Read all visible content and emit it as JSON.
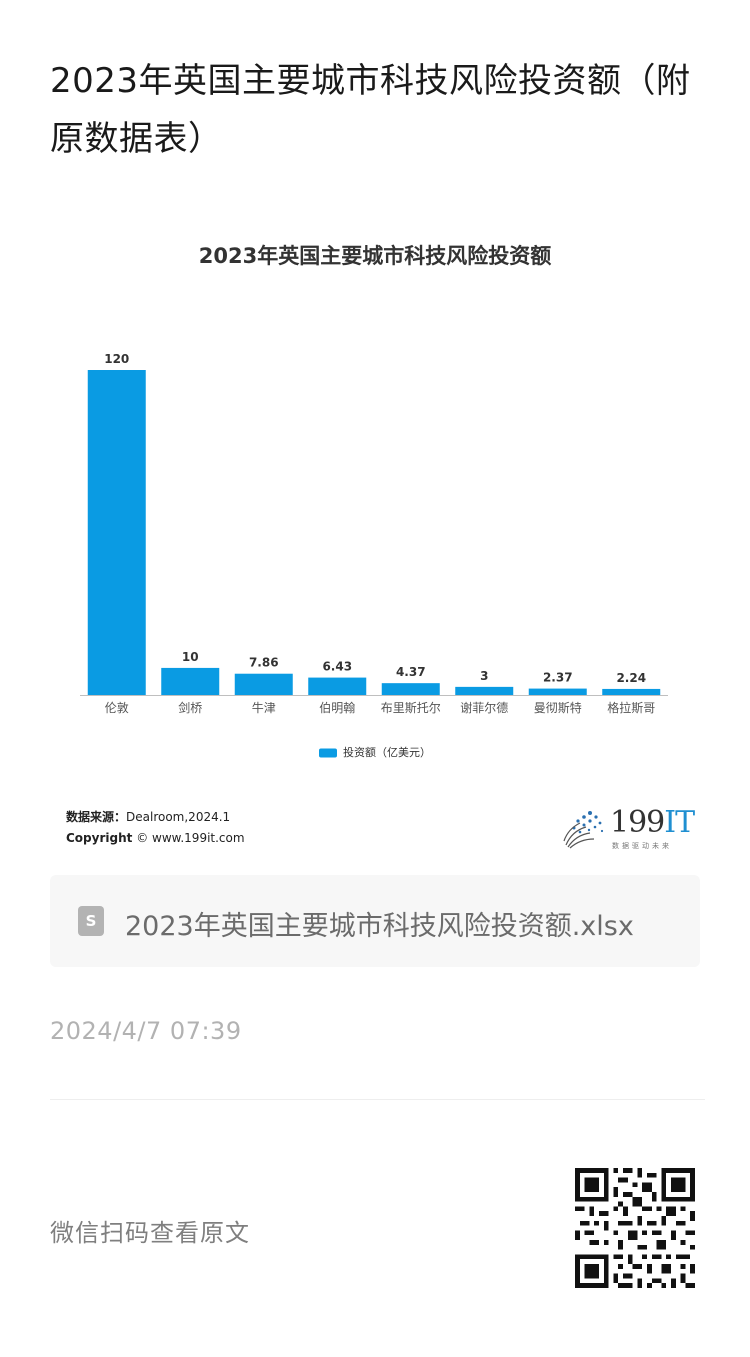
{
  "article": {
    "title": "2023年英国主要城市科技风险投资额（附原数据表）"
  },
  "chart_data": {
    "type": "bar",
    "title": "2023年英国主要城市科技风险投资额",
    "categories": [
      "伦敦",
      "剑桥",
      "牛津",
      "伯明翰",
      "布里斯托尔",
      "谢菲尔德",
      "曼彻斯特",
      "格拉斯哥"
    ],
    "series": [
      {
        "name": "投资额（亿美元）",
        "values": [
          120,
          10,
          7.86,
          6.43,
          4.37,
          3,
          2.37,
          2.24
        ],
        "labels": [
          "120",
          "10",
          "7.86",
          "6.43",
          "4.37",
          "3",
          "2.37",
          "2.24"
        ]
      }
    ],
    "xlabel": "",
    "ylabel": "",
    "ylim": [
      0,
      120
    ],
    "grid": false,
    "legend_position": "bottom",
    "colors": {
      "bar": "#0a9be3",
      "axis": "#bfbfbf"
    }
  },
  "source": {
    "label": "数据来源：",
    "value": "Dealroom,2024.1",
    "copyright_label": "Copyright",
    "copyright_value": "© www.199it.com"
  },
  "brand": {
    "num": "199",
    "suffix": "IT",
    "tagline": "数据驱动未来"
  },
  "attachment": {
    "icon": "spreadsheet-file-icon",
    "icon_letter": "S",
    "filename": "2023年英国主要城市科技风险投资额.xlsx"
  },
  "meta": {
    "date": "2024/4/7 07:39",
    "scan_text": "微信扫码查看原文"
  }
}
